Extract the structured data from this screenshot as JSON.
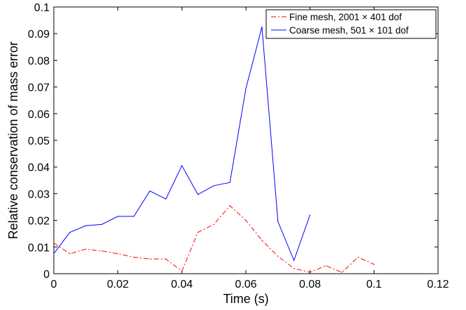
{
  "chart_data": {
    "type": "line",
    "title": "",
    "xlabel": "Time (s)",
    "ylabel": "Relative conservation of mass error",
    "xlim": [
      0,
      0.12
    ],
    "ylim": [
      0,
      0.1
    ],
    "x_ticks": [
      "0",
      "0.02",
      "0.04",
      "0.06",
      "0.08",
      "0.1",
      "0.12"
    ],
    "y_ticks": [
      "0",
      "0.01",
      "0.02",
      "0.03",
      "0.04",
      "0.05",
      "0.06",
      "0.07",
      "0.08",
      "0.09",
      "0.1"
    ],
    "grid": false,
    "legend_position": "top-right",
    "series": [
      {
        "name": "Fine mesh, 2001 × 401 dof",
        "color": "#ff0000",
        "line_style": "dash-dot",
        "x": [
          0,
          0.005,
          0.01,
          0.015,
          0.02,
          0.025,
          0.03,
          0.035,
          0.04,
          0.045,
          0.05,
          0.055,
          0.06,
          0.065,
          0.07,
          0.075,
          0.08,
          0.085,
          0.09,
          0.095,
          0.1
        ],
        "y": [
          0.0115,
          0.0075,
          0.0092,
          0.0085,
          0.0075,
          0.0062,
          0.0055,
          0.0055,
          0.001,
          0.0155,
          0.0185,
          0.0255,
          0.02,
          0.0125,
          0.0065,
          0.002,
          0.0005,
          0.003,
          0.0005,
          0.0062,
          0.0035
        ]
      },
      {
        "name": "Coarse mesh, 501 × 101 dof",
        "color": "#0000ff",
        "line_style": "solid",
        "x": [
          0,
          0.005,
          0.01,
          0.015,
          0.02,
          0.025,
          0.03,
          0.035,
          0.04,
          0.045,
          0.05,
          0.055,
          0.06,
          0.065,
          0.07,
          0.075,
          0.08
        ],
        "y": [
          0.0075,
          0.0155,
          0.018,
          0.0185,
          0.0215,
          0.0215,
          0.031,
          0.028,
          0.0405,
          0.0297,
          0.033,
          0.0342,
          0.0695,
          0.0925,
          0.0195,
          0.005,
          0.022
        ]
      }
    ]
  }
}
